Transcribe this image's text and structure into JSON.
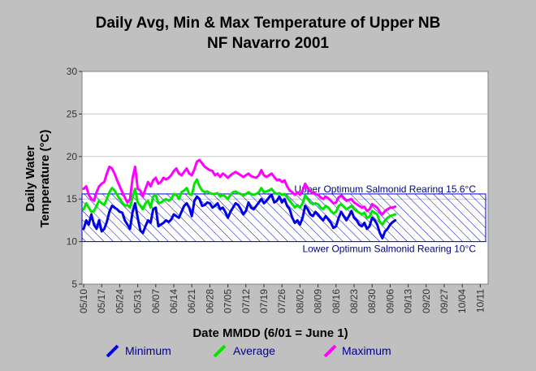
{
  "chart_data": {
    "type": "line",
    "title_line1": "Daily Avg, Min & Max Temperature of Upper NB",
    "title_line2": "NF Navarro 2001",
    "xlabel": "Date MMDD (6/01 = June 1)",
    "ylabel_line1": "Daily Water",
    "ylabel_line2": "Temperature (°C)",
    "ylim": [
      5,
      30
    ],
    "yticks": [
      5,
      10,
      15,
      20,
      25,
      30
    ],
    "xticks": [
      "05/10",
      "05/17",
      "05/24",
      "05/31",
      "06/07",
      "06/14",
      "06/21",
      "06/28",
      "07/05",
      "07/12",
      "07/19",
      "07/26",
      "08/02",
      "08/09",
      "08/16",
      "08/23",
      "08/30",
      "09/06",
      "09/13",
      "09/20",
      "09/27",
      "10/04",
      "10/11"
    ],
    "grid": "horizontal",
    "legend_position": "bottom",
    "band": {
      "lower": 10,
      "upper": 15.6,
      "upper_label": "Upper Optimum Salmonid Rearing 15.6°C",
      "lower_label": "Lower Optimum Salmonid Rearing 10°C",
      "color": "#0000cd"
    },
    "x_start_day": 0,
    "series": [
      {
        "name": "Minimum",
        "color": "#0000e6",
        "values": [
          11.5,
          12.5,
          12.0,
          13.2,
          12.0,
          11.5,
          12.5,
          11.2,
          11.5,
          12.3,
          13.5,
          14.2,
          14.0,
          13.8,
          13.5,
          13.4,
          12.5,
          12.0,
          11.5,
          13.5,
          14.5,
          12.8,
          11.3,
          11.0,
          11.8,
          12.5,
          12.2,
          13.8,
          14.0,
          11.8,
          12.0,
          12.2,
          12.5,
          12.3,
          12.6,
          13.2,
          13.0,
          12.8,
          13.5,
          14.2,
          14.5,
          14.0,
          13.0,
          14.8,
          15.3,
          15.0,
          14.2,
          14.3,
          14.6,
          14.5,
          14.0,
          14.2,
          14.5,
          13.8,
          14.0,
          13.5,
          12.8,
          13.5,
          14.0,
          14.5,
          14.3,
          13.8,
          13.2,
          13.6,
          14.6,
          14.0,
          13.8,
          14.2,
          14.6,
          15.0,
          14.5,
          14.8,
          15.2,
          15.5,
          14.6,
          14.8,
          15.3,
          14.6,
          15.0,
          14.2,
          13.8,
          12.8,
          12.2,
          12.5,
          12.0,
          12.8,
          14.2,
          13.8,
          13.2,
          13.0,
          13.5,
          13.2,
          12.8,
          12.5,
          13.0,
          12.6,
          12.2,
          11.6,
          11.8,
          12.8,
          13.5,
          13.0,
          12.5,
          13.0,
          13.6,
          12.8,
          12.5,
          12.0,
          11.8,
          12.2,
          11.5,
          11.8,
          12.8,
          12.5,
          12.0,
          11.0,
          10.4,
          11.2,
          11.5,
          12.0,
          12.3,
          12.5
        ],
        "source_note": ""
      },
      {
        "name": "Average",
        "color": "#00e600",
        "values": [
          13.8,
          14.5,
          14.0,
          13.5,
          13.6,
          14.2,
          14.8,
          14.5,
          14.3,
          15.0,
          15.8,
          16.3,
          16.0,
          15.5,
          15.0,
          14.6,
          14.2,
          14.3,
          14.0,
          15.3,
          16.2,
          14.6,
          14.2,
          13.8,
          14.5,
          14.8,
          14.0,
          15.3,
          15.5,
          14.5,
          14.6,
          14.8,
          15.0,
          14.8,
          15.0,
          15.6,
          15.5,
          15.0,
          15.8,
          16.0,
          16.3,
          15.6,
          15.5,
          16.8,
          17.3,
          16.5,
          16.0,
          15.8,
          15.9,
          15.7,
          15.6,
          15.6,
          15.7,
          15.3,
          15.5,
          15.3,
          15.0,
          15.5,
          15.8,
          15.9,
          15.7,
          15.6,
          15.4,
          15.6,
          15.8,
          15.6,
          15.5,
          15.6,
          15.8,
          16.3,
          15.8,
          15.9,
          16.0,
          16.2,
          15.8,
          15.6,
          15.7,
          15.5,
          15.6,
          15.2,
          14.8,
          14.4,
          14.0,
          14.3,
          14.0,
          14.5,
          15.4,
          15.0,
          14.6,
          14.4,
          14.5,
          14.4,
          14.0,
          13.8,
          14.2,
          14.0,
          13.6,
          13.3,
          13.5,
          14.2,
          14.4,
          14.1,
          13.8,
          14.0,
          14.2,
          13.8,
          13.6,
          13.4,
          13.2,
          13.4,
          12.8,
          12.9,
          13.6,
          13.4,
          13.2,
          12.3,
          12.0,
          12.5,
          12.8,
          13.0,
          13.1,
          13.2
        ],
        "source_note": ""
      },
      {
        "name": "Maximum",
        "color": "#ff00ff",
        "values": [
          16.2,
          16.5,
          15.5,
          15.0,
          14.8,
          15.8,
          16.5,
          16.8,
          17.0,
          18.0,
          18.8,
          18.6,
          18.0,
          17.2,
          16.5,
          15.8,
          15.2,
          14.6,
          15.0,
          17.5,
          18.8,
          16.2,
          16.0,
          15.3,
          16.2,
          17.0,
          16.5,
          17.2,
          17.5,
          16.8,
          17.0,
          17.5,
          17.3,
          17.5,
          17.8,
          18.3,
          18.6,
          18.0,
          17.8,
          18.2,
          18.6,
          18.0,
          17.8,
          18.5,
          19.4,
          19.6,
          19.2,
          18.8,
          18.6,
          18.4,
          18.3,
          17.8,
          18.0,
          17.6,
          18.0,
          17.8,
          17.5,
          17.8,
          18.0,
          18.2,
          18.0,
          17.8,
          17.6,
          17.8,
          18.0,
          17.7,
          17.6,
          17.5,
          17.8,
          18.4,
          17.8,
          17.6,
          17.8,
          18.0,
          17.6,
          17.2,
          17.3,
          17.0,
          17.2,
          16.5,
          16.0,
          15.8,
          15.5,
          15.8,
          15.5,
          16.0,
          16.8,
          16.3,
          15.9,
          15.7,
          15.6,
          15.5,
          15.2,
          15.0,
          15.3,
          15.1,
          14.8,
          14.5,
          14.6,
          15.2,
          15.4,
          15.1,
          14.8,
          14.9,
          15.0,
          14.6,
          14.4,
          14.2,
          14.0,
          14.1,
          13.6,
          13.8,
          14.4,
          14.2,
          14.0,
          13.5,
          13.2,
          13.6,
          13.8,
          14.0,
          14.0,
          14.1
        ],
        "source_note": ""
      }
    ]
  }
}
